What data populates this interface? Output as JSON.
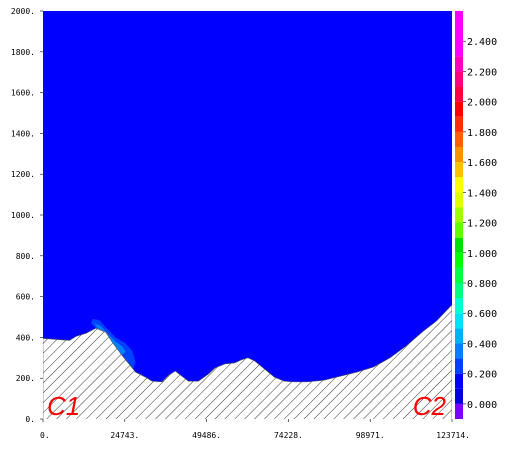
{
  "chart_data": {
    "type": "heatmap",
    "x_ticks": [
      "0.",
      "24743.",
      "49486.",
      "74228.",
      "98971.",
      "123714."
    ],
    "y_ticks": [
      "0.",
      "200.",
      "400.",
      "600.",
      "800.",
      "1000.",
      "1200.",
      "1400.",
      "1600.",
      "1800.",
      "2000."
    ],
    "xlim": [
      0,
      123714
    ],
    "ylim": [
      0,
      2000
    ],
    "colorbar": {
      "ticks": [
        "2.400",
        "2.200",
        "2.000",
        "1.800",
        "1.600",
        "1.400",
        "1.200",
        "1.000",
        "0.800",
        "0.600",
        "0.400",
        "0.200",
        "0.000"
      ],
      "range": [
        -0.1,
        2.6
      ],
      "bands": [
        {
          "from": -0.1,
          "to": 0.0,
          "color": "#8000ff"
        },
        {
          "from": 0.0,
          "to": 0.1,
          "color": "#0000dd"
        },
        {
          "from": 0.1,
          "to": 0.2,
          "color": "#0000ff"
        },
        {
          "from": 0.2,
          "to": 0.3,
          "color": "#0040ff"
        },
        {
          "from": 0.3,
          "to": 0.4,
          "color": "#0080ff"
        },
        {
          "from": 0.4,
          "to": 0.5,
          "color": "#00b0ff"
        },
        {
          "from": 0.5,
          "to": 0.6,
          "color": "#00e0ff"
        },
        {
          "from": 0.6,
          "to": 0.7,
          "color": "#00ffd0"
        },
        {
          "from": 0.7,
          "to": 0.8,
          "color": "#00ff80"
        },
        {
          "from": 0.8,
          "to": 0.9,
          "color": "#00ff40"
        },
        {
          "from": 0.9,
          "to": 1.0,
          "color": "#00ff00"
        },
        {
          "from": 1.0,
          "to": 1.1,
          "color": "#00e000"
        },
        {
          "from": 1.1,
          "to": 1.2,
          "color": "#60ff00"
        },
        {
          "from": 1.2,
          "to": 1.3,
          "color": "#a0ff00"
        },
        {
          "from": 1.3,
          "to": 1.4,
          "color": "#e0ff00"
        },
        {
          "from": 1.4,
          "to": 1.5,
          "color": "#ffff00"
        },
        {
          "from": 1.5,
          "to": 1.6,
          "color": "#ffc000"
        },
        {
          "from": 1.6,
          "to": 1.7,
          "color": "#ff9000"
        },
        {
          "from": 1.7,
          "to": 1.8,
          "color": "#ff6000"
        },
        {
          "from": 1.8,
          "to": 1.9,
          "color": "#ff3000"
        },
        {
          "from": 1.9,
          "to": 2.0,
          "color": "#ff0000"
        },
        {
          "from": 2.0,
          "to": 2.1,
          "color": "#ff0040"
        },
        {
          "from": 2.1,
          "to": 2.2,
          "color": "#ff0080"
        },
        {
          "from": 2.2,
          "to": 2.3,
          "color": "#ff00c0"
        },
        {
          "from": 2.3,
          "to": 2.6,
          "color": "#ff00ff"
        }
      ]
    },
    "background_value": 0.1,
    "background_color": "#0000ff",
    "terrain": {
      "fill": "#ffffff",
      "hatch_color": "#000000",
      "profile": [
        [
          0,
          395
        ],
        [
          4000,
          390
        ],
        [
          8000,
          385
        ],
        [
          10000,
          405
        ],
        [
          13000,
          420
        ],
        [
          16000,
          445
        ],
        [
          19000,
          425
        ],
        [
          21000,
          375
        ],
        [
          24000,
          310
        ],
        [
          28000,
          230
        ],
        [
          31000,
          205
        ],
        [
          33000,
          185
        ],
        [
          36000,
          182
        ],
        [
          38000,
          215
        ],
        [
          40000,
          235
        ],
        [
          42000,
          210
        ],
        [
          44000,
          185
        ],
        [
          47000,
          185
        ],
        [
          50000,
          220
        ],
        [
          52000,
          250
        ],
        [
          55000,
          270
        ],
        [
          58000,
          275
        ],
        [
          60000,
          290
        ],
        [
          62000,
          300
        ],
        [
          64000,
          285
        ],
        [
          67000,
          245
        ],
        [
          70000,
          205
        ],
        [
          73000,
          185
        ],
        [
          76000,
          182
        ],
        [
          80000,
          182
        ],
        [
          85000,
          190
        ],
        [
          90000,
          210
        ],
        [
          95000,
          230
        ],
        [
          100000,
          255
        ],
        [
          105000,
          300
        ],
        [
          110000,
          360
        ],
        [
          115000,
          430
        ],
        [
          119000,
          480
        ],
        [
          123714,
          560
        ]
      ]
    },
    "anomalies": [
      {
        "color": "#0040ff",
        "points": [
          [
            15000,
            490
          ],
          [
            17000,
            485
          ],
          [
            19000,
            450
          ],
          [
            22000,
            400
          ],
          [
            25000,
            370
          ],
          [
            27000,
            335
          ],
          [
            28000,
            280
          ],
          [
            27000,
            230
          ],
          [
            24000,
            310
          ],
          [
            21000,
            375
          ],
          [
            19000,
            425
          ],
          [
            16000,
            445
          ],
          [
            14500,
            470
          ]
        ]
      },
      {
        "color": "#0080ff",
        "points": [
          [
            15500,
            470
          ],
          [
            17500,
            455
          ],
          [
            19500,
            420
          ],
          [
            22000,
            380
          ],
          [
            24000,
            355
          ],
          [
            25000,
            330
          ],
          [
            23000,
            300
          ],
          [
            21000,
            360
          ],
          [
            19000,
            420
          ],
          [
            16500,
            445
          ]
        ]
      },
      {
        "color": "#00b0ff",
        "points": [
          [
            16500,
            445
          ],
          [
            18500,
            430
          ],
          [
            20500,
            390
          ],
          [
            22000,
            330
          ],
          [
            21000,
            360
          ],
          [
            19000,
            415
          ]
        ]
      }
    ],
    "end_labels": [
      "C1",
      "C2"
    ]
  }
}
